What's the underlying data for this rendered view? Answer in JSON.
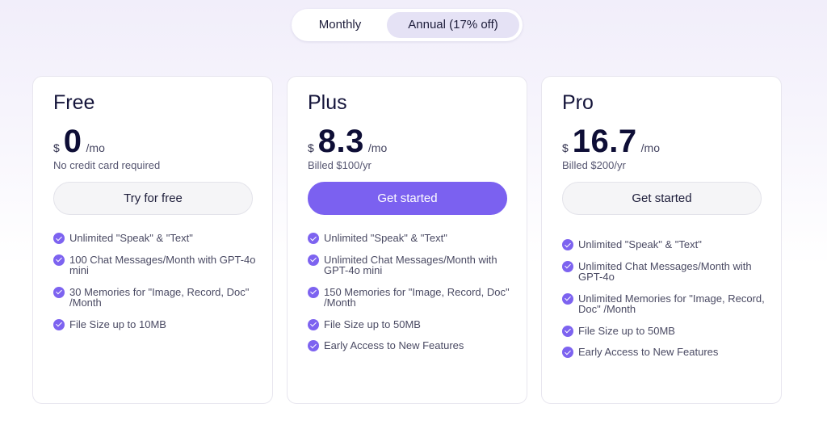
{
  "billing_toggle": {
    "monthly_label": "Monthly",
    "annual_label": "Annual (17% off)",
    "selected": "annual"
  },
  "plans": [
    {
      "name": "Free",
      "currency": "$",
      "price": "0",
      "period": "/mo",
      "note": "No credit card required",
      "cta": "Try for free",
      "features": [
        "Unlimited \"Speak\" & \"Text\"",
        "100 Chat Messages/Month with GPT-4o mini",
        "30 Memories for \"Image, Record, Doc\" /Month",
        "File Size up to 10MB"
      ]
    },
    {
      "name": "Plus",
      "currency": "$",
      "price": "8.3",
      "period": "/mo",
      "note": "Billed $100/yr",
      "cta": "Get started",
      "features": [
        "Unlimited \"Speak\" & \"Text\"",
        "Unlimited Chat Messages/Month with GPT-4o mini",
        "150 Memories for \"Image, Record, Doc\" /Month",
        "File Size up to 50MB",
        "Early Access to New Features"
      ]
    },
    {
      "name": "Pro",
      "currency": "$",
      "price": "16.7",
      "period": "/mo",
      "note": "Billed $200/yr",
      "cta": "Get started",
      "features": [
        "Unlimited \"Speak\" & \"Text\"",
        "Unlimited Chat Messages/Month with GPT-4o",
        "Unlimited Memories for \"Image, Record, Doc\" /Month",
        "File Size up to 50MB",
        "Early Access to New Features"
      ]
    }
  ],
  "icons": {
    "feature_check": "check-circle-icon"
  },
  "colors": {
    "accent": "#7b61f0",
    "toggle_selected_bg": "#e5e2f5",
    "heading": "#14143a"
  }
}
